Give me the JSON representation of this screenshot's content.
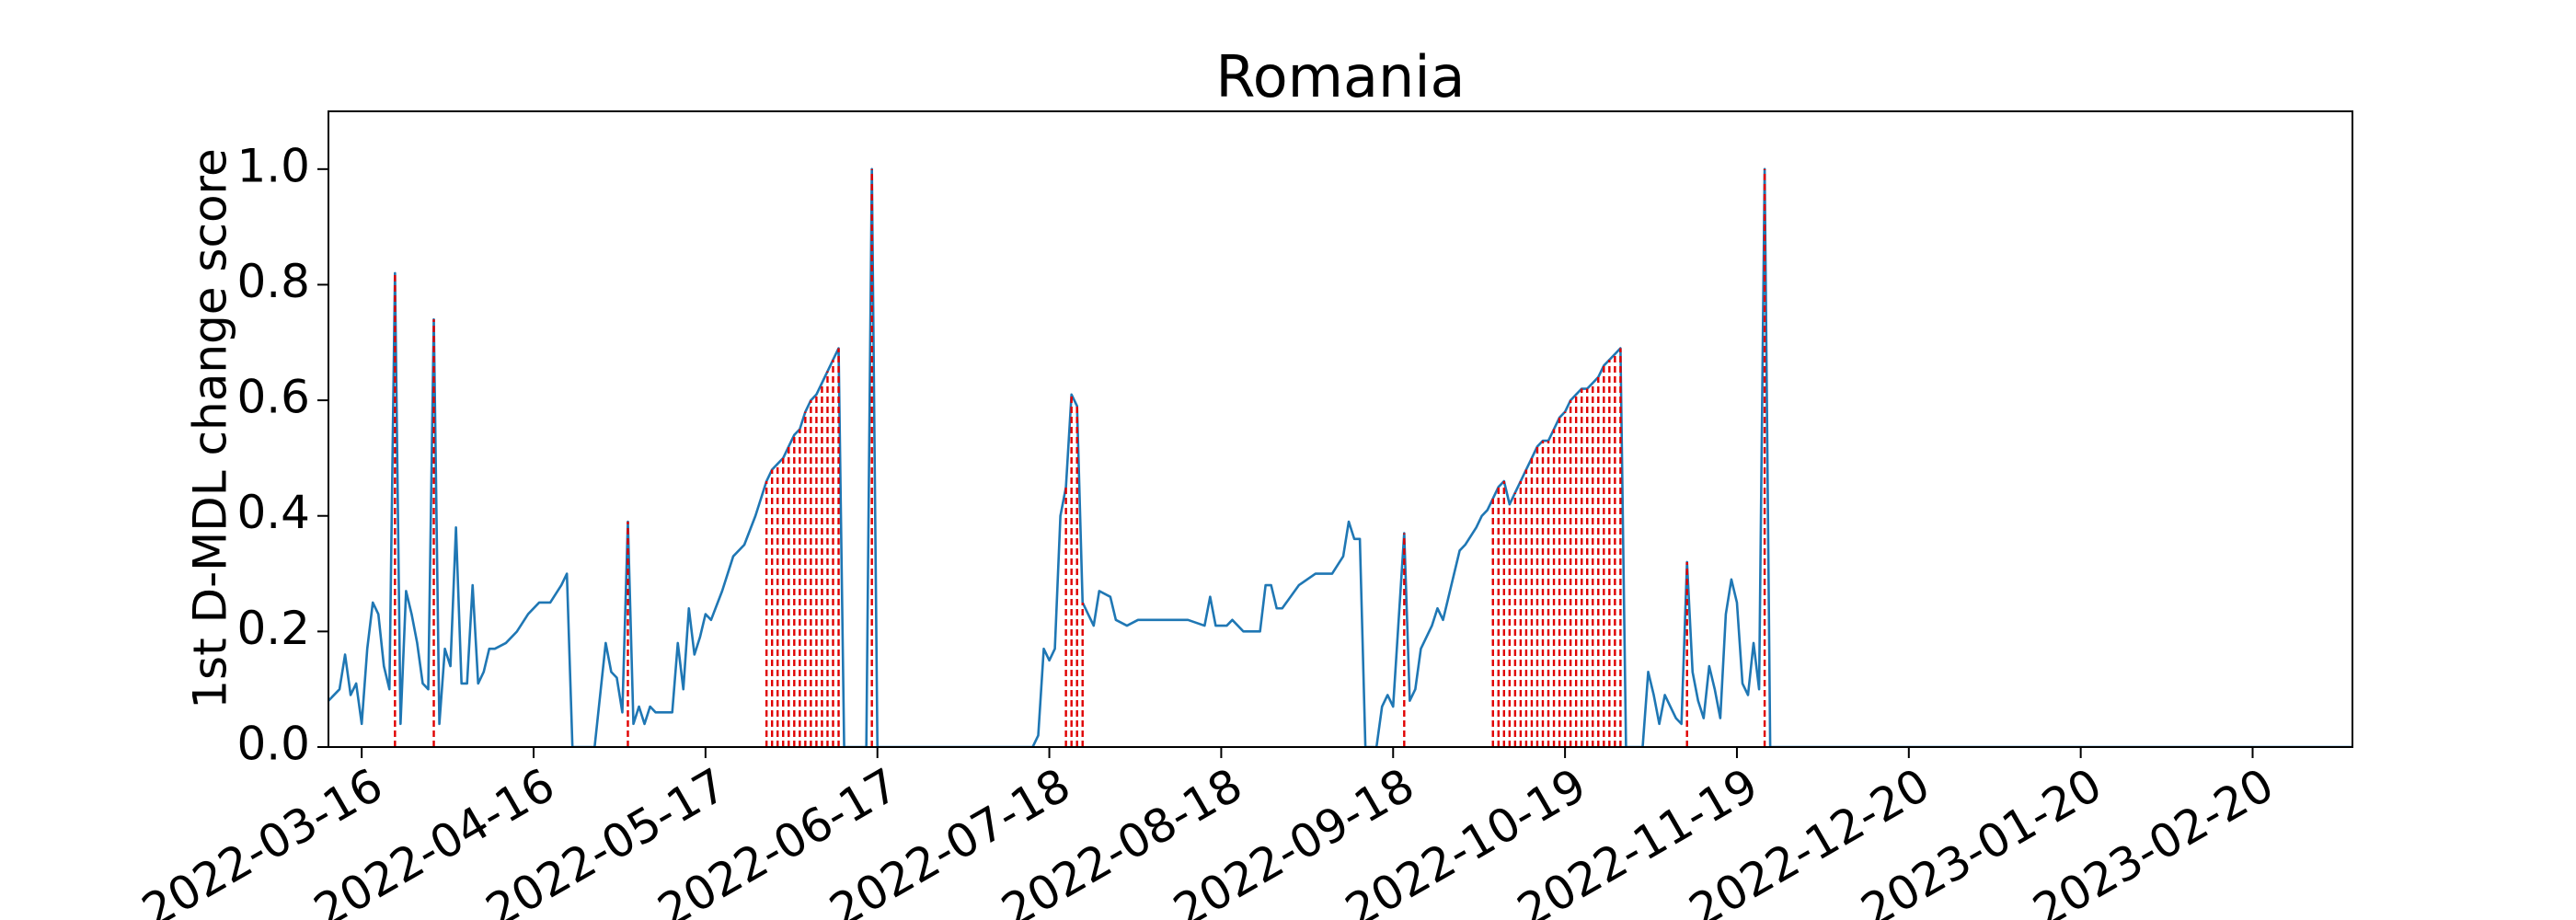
{
  "chart_data": {
    "type": "line",
    "title": "Romania",
    "y_label": "1st D-MDL change score",
    "color": "#1f77b4",
    "alarm_color": "#e00000",
    "xlim": [
      "2022-03-10",
      "2023-03-10"
    ],
    "ylim": [
      0,
      1.1
    ],
    "xticks": [
      "2022-03-16",
      "2022-04-16",
      "2022-05-17",
      "2022-06-17",
      "2022-07-18",
      "2022-08-18",
      "2022-09-18",
      "2022-10-19",
      "2022-11-19",
      "2022-12-20",
      "2023-01-20",
      "2023-02-20"
    ],
    "yticks": [
      {
        "value": 0,
        "label": "0.0"
      },
      {
        "value": 0.2,
        "label": "0.2"
      },
      {
        "value": 0.4,
        "label": "0.4"
      },
      {
        "value": 0.6,
        "label": "0.6"
      },
      {
        "value": 0.8,
        "label": "0.8"
      },
      {
        "value": 1,
        "label": "1.0"
      }
    ],
    "x": [
      "2022-03-10",
      "2022-03-11",
      "2022-03-12",
      "2022-03-13",
      "2022-03-14",
      "2022-03-15",
      "2022-03-16",
      "2022-03-17",
      "2022-03-18",
      "2022-03-19",
      "2022-03-20",
      "2022-03-21",
      "2022-03-22",
      "2022-03-23",
      "2022-03-24",
      "2022-03-25",
      "2022-03-26",
      "2022-03-27",
      "2022-03-28",
      "2022-03-29",
      "2022-03-30",
      "2022-03-31",
      "2022-04-01",
      "2022-04-02",
      "2022-04-03",
      "2022-04-04",
      "2022-04-05",
      "2022-04-06",
      "2022-04-07",
      "2022-04-08",
      "2022-04-09",
      "2022-04-11",
      "2022-04-13",
      "2022-04-15",
      "2022-04-17",
      "2022-04-19",
      "2022-04-21",
      "2022-04-22",
      "2022-04-23",
      "2022-04-27",
      "2022-04-28",
      "2022-04-29",
      "2022-04-30",
      "2022-05-01",
      "2022-05-02",
      "2022-05-03",
      "2022-05-04",
      "2022-05-05",
      "2022-05-06",
      "2022-05-07",
      "2022-05-08",
      "2022-05-11",
      "2022-05-12",
      "2022-05-13",
      "2022-05-14",
      "2022-05-15",
      "2022-05-16",
      "2022-05-17",
      "2022-05-18",
      "2022-05-20",
      "2022-05-22",
      "2022-05-24",
      "2022-05-26",
      "2022-05-27",
      "2022-05-28",
      "2022-05-29",
      "2022-05-30",
      "2022-05-31",
      "2022-06-01",
      "2022-06-02",
      "2022-06-03",
      "2022-06-04",
      "2022-06-05",
      "2022-06-06",
      "2022-06-07",
      "2022-06-08",
      "2022-06-09",
      "2022-06-10",
      "2022-06-11",
      "2022-06-15",
      "2022-06-16",
      "2022-06-17",
      "2022-07-15",
      "2022-07-16",
      "2022-07-17",
      "2022-07-18",
      "2022-07-19",
      "2022-07-20",
      "2022-07-21",
      "2022-07-22",
      "2022-07-23",
      "2022-07-24",
      "2022-07-25",
      "2022-07-26",
      "2022-07-27",
      "2022-07-29",
      "2022-07-30",
      "2022-08-01",
      "2022-08-03",
      "2022-08-06",
      "2022-08-09",
      "2022-08-12",
      "2022-08-15",
      "2022-08-16",
      "2022-08-17",
      "2022-08-19",
      "2022-08-20",
      "2022-08-22",
      "2022-08-25",
      "2022-08-26",
      "2022-08-27",
      "2022-08-28",
      "2022-08-29",
      "2022-09-01",
      "2022-09-04",
      "2022-09-07",
      "2022-09-09",
      "2022-09-10",
      "2022-09-11",
      "2022-09-12",
      "2022-09-13",
      "2022-09-15",
      "2022-09-16",
      "2022-09-17",
      "2022-09-18",
      "2022-09-20",
      "2022-09-21",
      "2022-09-22",
      "2022-09-23",
      "2022-09-25",
      "2022-09-26",
      "2022-09-27",
      "2022-09-28",
      "2022-09-30",
      "2022-10-01",
      "2022-10-03",
      "2022-10-04",
      "2022-10-05",
      "2022-10-06",
      "2022-10-07",
      "2022-10-08",
      "2022-10-09",
      "2022-10-10",
      "2022-10-11",
      "2022-10-12",
      "2022-10-13",
      "2022-10-14",
      "2022-10-15",
      "2022-10-16",
      "2022-10-17",
      "2022-10-18",
      "2022-10-19",
      "2022-10-20",
      "2022-10-21",
      "2022-10-22",
      "2022-10-23",
      "2022-10-24",
      "2022-10-25",
      "2022-10-26",
      "2022-10-27",
      "2022-10-28",
      "2022-10-29",
      "2022-10-30",
      "2022-11-02",
      "2022-11-03",
      "2022-11-04",
      "2022-11-05",
      "2022-11-06",
      "2022-11-07",
      "2022-11-08",
      "2022-11-09",
      "2022-11-10",
      "2022-11-11",
      "2022-11-12",
      "2022-11-13",
      "2022-11-14",
      "2022-11-15",
      "2022-11-16",
      "2022-11-17",
      "2022-11-18",
      "2022-11-19",
      "2022-11-20",
      "2022-11-21",
      "2022-11-22",
      "2022-11-23",
      "2022-11-24",
      "2022-11-25",
      "2023-03-10"
    ],
    "values": [
      0.08,
      0.09,
      0.1,
      0.16,
      0.09,
      0.11,
      0.04,
      0.17,
      0.25,
      0.23,
      0.14,
      0.1,
      0.82,
      0.04,
      0.27,
      0.23,
      0.18,
      0.11,
      0.1,
      0.74,
      0.04,
      0.17,
      0.14,
      0.38,
      0.11,
      0.11,
      0.28,
      0.11,
      0.13,
      0.17,
      0.17,
      0.18,
      0.2,
      0.23,
      0.25,
      0.25,
      0.28,
      0.3,
      0,
      0,
      0.09,
      0.18,
      0.13,
      0.12,
      0.06,
      0.39,
      0.04,
      0.07,
      0.04,
      0.07,
      0.06,
      0.06,
      0.18,
      0.1,
      0.24,
      0.16,
      0.19,
      0.23,
      0.22,
      0.27,
      0.33,
      0.35,
      0.4,
      0.43,
      0.46,
      0.48,
      0.49,
      0.5,
      0.52,
      0.54,
      0.55,
      0.58,
      0.6,
      0.61,
      0.63,
      0.65,
      0.67,
      0.69,
      0,
      0,
      1.0,
      0,
      0,
      0.02,
      0.17,
      0.15,
      0.17,
      0.4,
      0.45,
      0.61,
      0.59,
      0.25,
      0.23,
      0.21,
      0.27,
      0.26,
      0.22,
      0.21,
      0.22,
      0.22,
      0.22,
      0.22,
      0.21,
      0.26,
      0.21,
      0.21,
      0.22,
      0.2,
      0.2,
      0.28,
      0.28,
      0.24,
      0.24,
      0.28,
      0.3,
      0.3,
      0.33,
      0.39,
      0.36,
      0.36,
      0,
      0,
      0.07,
      0.09,
      0.07,
      0.37,
      0.08,
      0.1,
      0.17,
      0.21,
      0.24,
      0.22,
      0.26,
      0.34,
      0.35,
      0.38,
      0.4,
      0.41,
      0.43,
      0.45,
      0.46,
      0.42,
      0.44,
      0.46,
      0.48,
      0.5,
      0.52,
      0.53,
      0.53,
      0.55,
      0.57,
      0.58,
      0.6,
      0.61,
      0.62,
      0.62,
      0.63,
      0.64,
      0.66,
      0.67,
      0.68,
      0.69,
      0,
      0,
      0.13,
      0.09,
      0.04,
      0.09,
      0.07,
      0.05,
      0.04,
      0.32,
      0.13,
      0.08,
      0.05,
      0.14,
      0.1,
      0.05,
      0.23,
      0.29,
      0.25,
      0.11,
      0.09,
      0.18,
      0.1,
      1.0,
      0,
      0
    ],
    "alarms": [
      "2022-03-22",
      "2022-03-29",
      "2022-05-03",
      "2022-05-28",
      "2022-05-29",
      "2022-05-30",
      "2022-05-31",
      "2022-06-01",
      "2022-06-02",
      "2022-06-03",
      "2022-06-04",
      "2022-06-05",
      "2022-06-06",
      "2022-06-07",
      "2022-06-08",
      "2022-06-09",
      "2022-06-10",
      "2022-06-16",
      "2022-07-21",
      "2022-07-22",
      "2022-07-23",
      "2022-07-24",
      "2022-09-20",
      "2022-10-06",
      "2022-10-07",
      "2022-10-08",
      "2022-10-09",
      "2022-10-10",
      "2022-10-11",
      "2022-10-12",
      "2022-10-13",
      "2022-10-14",
      "2022-10-15",
      "2022-10-16",
      "2022-10-17",
      "2022-10-18",
      "2022-10-19",
      "2022-10-20",
      "2022-10-21",
      "2022-10-22",
      "2022-10-23",
      "2022-10-24",
      "2022-10-25",
      "2022-10-26",
      "2022-10-27",
      "2022-10-28",
      "2022-10-29",
      "2022-11-10",
      "2022-11-24"
    ]
  }
}
